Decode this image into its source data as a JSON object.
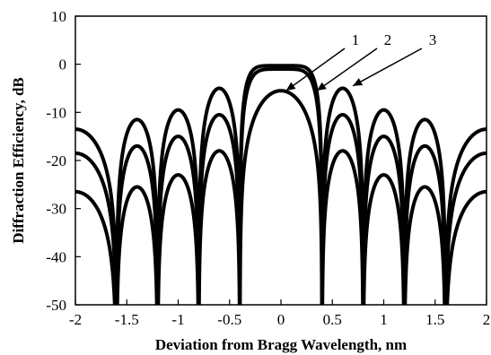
{
  "chart_data": {
    "type": "line",
    "title": "",
    "xlabel": "Deviation from Bragg Wavelength, nm",
    "ylabel": "Diffraction Efficiency, dB",
    "xlim": [
      -2,
      2
    ],
    "ylim": [
      -50,
      10
    ],
    "xticks": [
      -2,
      -1.5,
      -1,
      -0.5,
      0,
      0.5,
      1,
      1.5,
      2
    ],
    "xtick_labels": [
      "-2",
      "-1.5",
      "-1",
      "-0.5",
      "0",
      "0.5",
      "1",
      "1.5",
      "2"
    ],
    "yticks": [
      10,
      0,
      -10,
      -20,
      -30,
      -40,
      -50
    ],
    "ytick_labels": [
      "10",
      "0",
      "-10",
      "-20",
      "-30",
      "-40",
      "-50"
    ],
    "grid": false,
    "legend": "none",
    "series": [
      {
        "label": "1",
        "peak_db": -5.5,
        "notches_nm": [
          -1.6,
          -1.2,
          -0.8,
          -0.4,
          0.4,
          0.8,
          1.2,
          1.6
        ],
        "sidelobe_peaks": [
          {
            "x": -1.8,
            "y": -26.5
          },
          {
            "x": -1.4,
            "y": -25.5
          },
          {
            "x": -1.0,
            "y": -23.0
          },
          {
            "x": -0.6,
            "y": -18.0
          },
          {
            "x": 0.6,
            "y": -18.0
          },
          {
            "x": 1.0,
            "y": -23.0
          },
          {
            "x": 1.4,
            "y": -25.5
          },
          {
            "x": 1.8,
            "y": -26.5
          }
        ]
      },
      {
        "label": "2",
        "peak_db": -1.0,
        "notches_nm": [
          -1.6,
          -1.2,
          -0.8,
          -0.4,
          0.4,
          0.8,
          1.2,
          1.6
        ],
        "sidelobe_peaks": [
          {
            "x": -1.8,
            "y": -18.5
          },
          {
            "x": -1.4,
            "y": -17.0
          },
          {
            "x": -1.0,
            "y": -15.0
          },
          {
            "x": -0.6,
            "y": -10.5
          },
          {
            "x": 0.6,
            "y": -10.5
          },
          {
            "x": 1.0,
            "y": -15.0
          },
          {
            "x": 1.4,
            "y": -17.0
          },
          {
            "x": 1.8,
            "y": -18.5
          }
        ]
      },
      {
        "label": "3",
        "peak_db": -0.3,
        "notches_nm": [
          -1.6,
          -1.2,
          -0.8,
          -0.4,
          0.4,
          0.8,
          1.2,
          1.6
        ],
        "sidelobe_peaks": [
          {
            "x": -1.8,
            "y": -13.5
          },
          {
            "x": -1.4,
            "y": -11.5
          },
          {
            "x": -1.0,
            "y": -9.5
          },
          {
            "x": -0.6,
            "y": -5.0
          },
          {
            "x": 0.6,
            "y": -5.0
          },
          {
            "x": 1.0,
            "y": -9.5
          },
          {
            "x": 1.4,
            "y": -11.5
          },
          {
            "x": 1.8,
            "y": -13.5
          }
        ]
      }
    ],
    "annotations": [
      {
        "text": "1",
        "points_to": {
          "x": 0.05,
          "y": -5.5
        }
      },
      {
        "text": "2",
        "points_to": {
          "x": 0.35,
          "y": -5.5
        }
      },
      {
        "text": "3",
        "points_to": {
          "x": 0.7,
          "y": -4.5
        }
      }
    ]
  }
}
